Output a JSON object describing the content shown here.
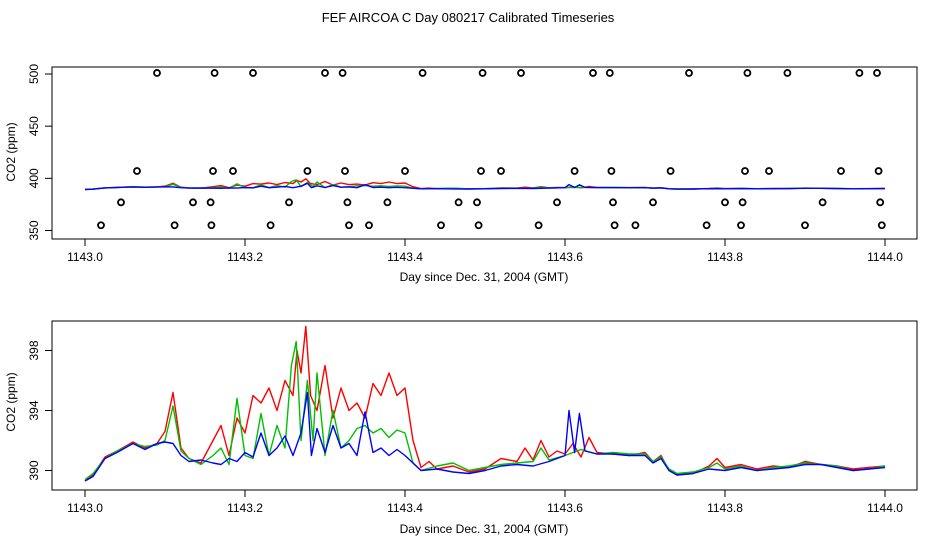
{
  "title": "FEF AIRCOA C  Day 080217  Calibrated Timeseries",
  "chart_data": [
    {
      "type": "scatter+line",
      "xlabel": "Day since Dec. 31, 2004 (GMT)",
      "ylabel": "CO2 (ppm)",
      "xlim": [
        1143.0,
        1144.0
      ],
      "ylim": [
        350,
        500
      ],
      "x_ticks": [
        "1143.0",
        "1143.2",
        "1143.4",
        "1143.6",
        "1143.8",
        "1144.0"
      ],
      "y_ticks": [
        "350",
        "400",
        "450",
        "500"
      ],
      "markers": {
        "style": "open-circle",
        "points": [
          [
            1143.02,
            355
          ],
          [
            1143.045,
            377
          ],
          [
            1143.065,
            407
          ],
          [
            1143.09,
            501
          ],
          [
            1143.112,
            355
          ],
          [
            1143.135,
            377
          ],
          [
            1143.157,
            377
          ],
          [
            1143.158,
            355
          ],
          [
            1143.16,
            407
          ],
          [
            1143.162,
            501
          ],
          [
            1143.185,
            407
          ],
          [
            1143.21,
            501
          ],
          [
            1143.232,
            355
          ],
          [
            1143.255,
            377
          ],
          [
            1143.278,
            407
          ],
          [
            1143.3,
            501
          ],
          [
            1143.322,
            501
          ],
          [
            1143.325,
            407
          ],
          [
            1143.328,
            377
          ],
          [
            1143.33,
            355
          ],
          [
            1143.355,
            355
          ],
          [
            1143.378,
            377
          ],
          [
            1143.4,
            407
          ],
          [
            1143.422,
            501
          ],
          [
            1143.445,
            355
          ],
          [
            1143.467,
            377
          ],
          [
            1143.49,
            377
          ],
          [
            1143.492,
            355
          ],
          [
            1143.495,
            407
          ],
          [
            1143.497,
            501
          ],
          [
            1143.52,
            407
          ],
          [
            1143.545,
            501
          ],
          [
            1143.567,
            355
          ],
          [
            1143.59,
            377
          ],
          [
            1143.612,
            407
          ],
          [
            1143.635,
            501
          ],
          [
            1143.656,
            501
          ],
          [
            1143.658,
            407
          ],
          [
            1143.66,
            377
          ],
          [
            1143.662,
            355
          ],
          [
            1143.688,
            355
          ],
          [
            1143.71,
            377
          ],
          [
            1143.732,
            407
          ],
          [
            1143.755,
            501
          ],
          [
            1143.777,
            355
          ],
          [
            1143.8,
            377
          ],
          [
            1143.82,
            355
          ],
          [
            1143.822,
            377
          ],
          [
            1143.825,
            407
          ],
          [
            1143.828,
            501
          ],
          [
            1143.855,
            407
          ],
          [
            1143.878,
            501
          ],
          [
            1143.9,
            355
          ],
          [
            1143.922,
            377
          ],
          [
            1143.945,
            407
          ],
          [
            1143.968,
            501
          ],
          [
            1143.99,
            501
          ],
          [
            1143.992,
            407
          ],
          [
            1143.994,
            377
          ],
          [
            1143.996,
            355
          ]
        ]
      },
      "series": [
        {
          "name": "red",
          "color": "#ff0000",
          "ref": "series_red"
        },
        {
          "name": "green",
          "color": "#00c000",
          "ref": "series_green"
        },
        {
          "name": "blue",
          "color": "#0000ff",
          "ref": "series_blue"
        }
      ]
    },
    {
      "type": "line",
      "xlabel": "Day since Dec. 31, 2004 (GMT)",
      "ylabel": "CO2 (ppm)",
      "xlim": [
        1143.0,
        1144.0
      ],
      "ylim": [
        389.2,
        399.7
      ],
      "x_ticks": [
        "1143.0",
        "1143.2",
        "1143.4",
        "1143.6",
        "1143.8",
        "1144.0"
      ],
      "y_ticks": [
        "390",
        "394",
        "398"
      ],
      "series": [
        {
          "name": "red",
          "color": "#ff0000",
          "ref": "series_red"
        },
        {
          "name": "green",
          "color": "#00c000",
          "ref": "series_green"
        },
        {
          "name": "blue",
          "color": "#0000ff",
          "ref": "series_blue"
        }
      ]
    }
  ],
  "series_red": [
    [
      1143.0,
      389.3
    ],
    [
      1143.01,
      389.7
    ],
    [
      1143.025,
      390.9
    ],
    [
      1143.04,
      391.3
    ],
    [
      1143.06,
      391.9
    ],
    [
      1143.075,
      391.5
    ],
    [
      1143.09,
      391.8
    ],
    [
      1143.1,
      392.6
    ],
    [
      1143.11,
      395.2
    ],
    [
      1143.12,
      391.5
    ],
    [
      1143.13,
      390.8
    ],
    [
      1143.145,
      390.5
    ],
    [
      1143.16,
      392.0
    ],
    [
      1143.17,
      393.0
    ],
    [
      1143.18,
      391.0
    ],
    [
      1143.19,
      393.5
    ],
    [
      1143.2,
      392.5
    ],
    [
      1143.21,
      395.0
    ],
    [
      1143.22,
      394.5
    ],
    [
      1143.23,
      395.5
    ],
    [
      1143.24,
      394.0
    ],
    [
      1143.25,
      396.0
    ],
    [
      1143.26,
      395.0
    ],
    [
      1143.265,
      398.0
    ],
    [
      1143.27,
      396.5
    ],
    [
      1143.276,
      399.6
    ],
    [
      1143.282,
      395.0
    ],
    [
      1143.29,
      394.0
    ],
    [
      1143.3,
      397.0
    ],
    [
      1143.31,
      393.5
    ],
    [
      1143.32,
      395.5
    ],
    [
      1143.33,
      394.0
    ],
    [
      1143.34,
      394.5
    ],
    [
      1143.35,
      393.5
    ],
    [
      1143.36,
      395.8
    ],
    [
      1143.37,
      395.0
    ],
    [
      1143.38,
      396.5
    ],
    [
      1143.39,
      395.0
    ],
    [
      1143.4,
      395.5
    ],
    [
      1143.41,
      392.0
    ],
    [
      1143.42,
      390.2
    ],
    [
      1143.43,
      390.6
    ],
    [
      1143.44,
      390.1
    ],
    [
      1143.46,
      390.3
    ],
    [
      1143.48,
      389.9
    ],
    [
      1143.5,
      390.1
    ],
    [
      1143.52,
      390.8
    ],
    [
      1143.54,
      390.6
    ],
    [
      1143.55,
      391.5
    ],
    [
      1143.56,
      390.7
    ],
    [
      1143.57,
      392.0
    ],
    [
      1143.58,
      390.9
    ],
    [
      1143.59,
      391.3
    ],
    [
      1143.6,
      391.1
    ],
    [
      1143.61,
      391.8
    ],
    [
      1143.62,
      390.9
    ],
    [
      1143.63,
      392.2
    ],
    [
      1143.64,
      391.2
    ],
    [
      1143.66,
      391.1
    ],
    [
      1143.68,
      391.0
    ],
    [
      1143.7,
      391.2
    ],
    [
      1143.71,
      390.6
    ],
    [
      1143.72,
      391.0
    ],
    [
      1143.73,
      390.0
    ],
    [
      1143.74,
      389.7
    ],
    [
      1143.76,
      389.8
    ],
    [
      1143.78,
      390.3
    ],
    [
      1143.79,
      390.8
    ],
    [
      1143.8,
      390.2
    ],
    [
      1143.82,
      390.4
    ],
    [
      1143.84,
      390.1
    ],
    [
      1143.86,
      390.3
    ],
    [
      1143.88,
      390.2
    ],
    [
      1143.9,
      390.6
    ],
    [
      1143.92,
      390.4
    ],
    [
      1143.94,
      390.3
    ],
    [
      1143.96,
      390.1
    ],
    [
      1143.98,
      390.2
    ],
    [
      1144.0,
      390.3
    ]
  ],
  "series_green": [
    [
      1143.0,
      389.4
    ],
    [
      1143.01,
      389.8
    ],
    [
      1143.025,
      390.8
    ],
    [
      1143.04,
      391.3
    ],
    [
      1143.06,
      391.8
    ],
    [
      1143.075,
      391.6
    ],
    [
      1143.09,
      391.7
    ],
    [
      1143.1,
      392.0
    ],
    [
      1143.11,
      394.3
    ],
    [
      1143.12,
      391.3
    ],
    [
      1143.13,
      390.8
    ],
    [
      1143.145,
      390.4
    ],
    [
      1143.16,
      391.0
    ],
    [
      1143.17,
      391.5
    ],
    [
      1143.18,
      390.4
    ],
    [
      1143.19,
      394.8
    ],
    [
      1143.2,
      391.0
    ],
    [
      1143.21,
      390.8
    ],
    [
      1143.22,
      393.8
    ],
    [
      1143.23,
      391.0
    ],
    [
      1143.24,
      393.0
    ],
    [
      1143.25,
      391.5
    ],
    [
      1143.258,
      397.0
    ],
    [
      1143.264,
      398.6
    ],
    [
      1143.27,
      392.0
    ],
    [
      1143.278,
      396.0
    ],
    [
      1143.285,
      392.0
    ],
    [
      1143.29,
      396.5
    ],
    [
      1143.3,
      391.0
    ],
    [
      1143.31,
      394.0
    ],
    [
      1143.32,
      391.5
    ],
    [
      1143.33,
      392.0
    ],
    [
      1143.34,
      392.8
    ],
    [
      1143.35,
      393.0
    ],
    [
      1143.36,
      392.5
    ],
    [
      1143.37,
      392.8
    ],
    [
      1143.38,
      392.2
    ],
    [
      1143.39,
      392.7
    ],
    [
      1143.4,
      392.5
    ],
    [
      1143.41,
      390.5
    ],
    [
      1143.42,
      390.0
    ],
    [
      1143.44,
      390.3
    ],
    [
      1143.46,
      390.5
    ],
    [
      1143.48,
      390.0
    ],
    [
      1143.5,
      390.2
    ],
    [
      1143.52,
      390.4
    ],
    [
      1143.54,
      390.5
    ],
    [
      1143.56,
      390.6
    ],
    [
      1143.57,
      391.5
    ],
    [
      1143.58,
      390.7
    ],
    [
      1143.6,
      391.0
    ],
    [
      1143.62,
      391.4
    ],
    [
      1143.64,
      391.1
    ],
    [
      1143.66,
      391.2
    ],
    [
      1143.68,
      391.1
    ],
    [
      1143.7,
      391.1
    ],
    [
      1143.71,
      390.6
    ],
    [
      1143.72,
      390.9
    ],
    [
      1143.73,
      390.1
    ],
    [
      1143.74,
      389.8
    ],
    [
      1143.76,
      389.9
    ],
    [
      1143.78,
      390.2
    ],
    [
      1143.79,
      390.5
    ],
    [
      1143.8,
      390.1
    ],
    [
      1143.82,
      390.3
    ],
    [
      1143.84,
      390.0
    ],
    [
      1143.86,
      390.2
    ],
    [
      1143.88,
      390.3
    ],
    [
      1143.9,
      390.5
    ],
    [
      1143.92,
      390.4
    ],
    [
      1143.94,
      390.3
    ],
    [
      1143.96,
      390.0
    ],
    [
      1143.98,
      390.1
    ],
    [
      1144.0,
      390.3
    ]
  ],
  "series_blue": [
    [
      1143.0,
      389.3
    ],
    [
      1143.01,
      389.6
    ],
    [
      1143.025,
      390.8
    ],
    [
      1143.04,
      391.2
    ],
    [
      1143.06,
      391.8
    ],
    [
      1143.075,
      391.4
    ],
    [
      1143.09,
      391.8
    ],
    [
      1143.1,
      391.9
    ],
    [
      1143.11,
      391.8
    ],
    [
      1143.12,
      391.0
    ],
    [
      1143.13,
      390.6
    ],
    [
      1143.145,
      390.7
    ],
    [
      1143.16,
      390.5
    ],
    [
      1143.17,
      390.4
    ],
    [
      1143.18,
      390.8
    ],
    [
      1143.19,
      390.6
    ],
    [
      1143.2,
      391.2
    ],
    [
      1143.21,
      390.9
    ],
    [
      1143.22,
      392.5
    ],
    [
      1143.23,
      391.0
    ],
    [
      1143.24,
      391.5
    ],
    [
      1143.25,
      392.3
    ],
    [
      1143.26,
      391.0
    ],
    [
      1143.27,
      392.5
    ],
    [
      1143.278,
      395.2
    ],
    [
      1143.283,
      391.0
    ],
    [
      1143.29,
      392.8
    ],
    [
      1143.3,
      391.2
    ],
    [
      1143.31,
      393.0
    ],
    [
      1143.32,
      391.5
    ],
    [
      1143.33,
      391.8
    ],
    [
      1143.34,
      391.0
    ],
    [
      1143.35,
      393.9
    ],
    [
      1143.36,
      391.2
    ],
    [
      1143.37,
      391.5
    ],
    [
      1143.38,
      391.0
    ],
    [
      1143.39,
      391.4
    ],
    [
      1143.4,
      391.0
    ],
    [
      1143.42,
      390.0
    ],
    [
      1143.44,
      390.1
    ],
    [
      1143.46,
      389.9
    ],
    [
      1143.48,
      389.8
    ],
    [
      1143.5,
      390.0
    ],
    [
      1143.52,
      390.3
    ],
    [
      1143.54,
      390.4
    ],
    [
      1143.56,
      390.3
    ],
    [
      1143.58,
      390.6
    ],
    [
      1143.6,
      391.0
    ],
    [
      1143.605,
      394.0
    ],
    [
      1143.612,
      391.2
    ],
    [
      1143.618,
      393.8
    ],
    [
      1143.625,
      391.3
    ],
    [
      1143.64,
      391.1
    ],
    [
      1143.66,
      391.1
    ],
    [
      1143.68,
      391.0
    ],
    [
      1143.7,
      391.0
    ],
    [
      1143.71,
      390.5
    ],
    [
      1143.72,
      390.8
    ],
    [
      1143.73,
      390.0
    ],
    [
      1143.74,
      389.7
    ],
    [
      1143.76,
      389.8
    ],
    [
      1143.78,
      390.1
    ],
    [
      1143.8,
      390.0
    ],
    [
      1143.82,
      390.2
    ],
    [
      1143.84,
      390.0
    ],
    [
      1143.86,
      390.1
    ],
    [
      1143.88,
      390.2
    ],
    [
      1143.9,
      390.4
    ],
    [
      1143.92,
      390.4
    ],
    [
      1143.94,
      390.2
    ],
    [
      1143.96,
      390.0
    ],
    [
      1143.98,
      390.1
    ],
    [
      1144.0,
      390.2
    ]
  ]
}
